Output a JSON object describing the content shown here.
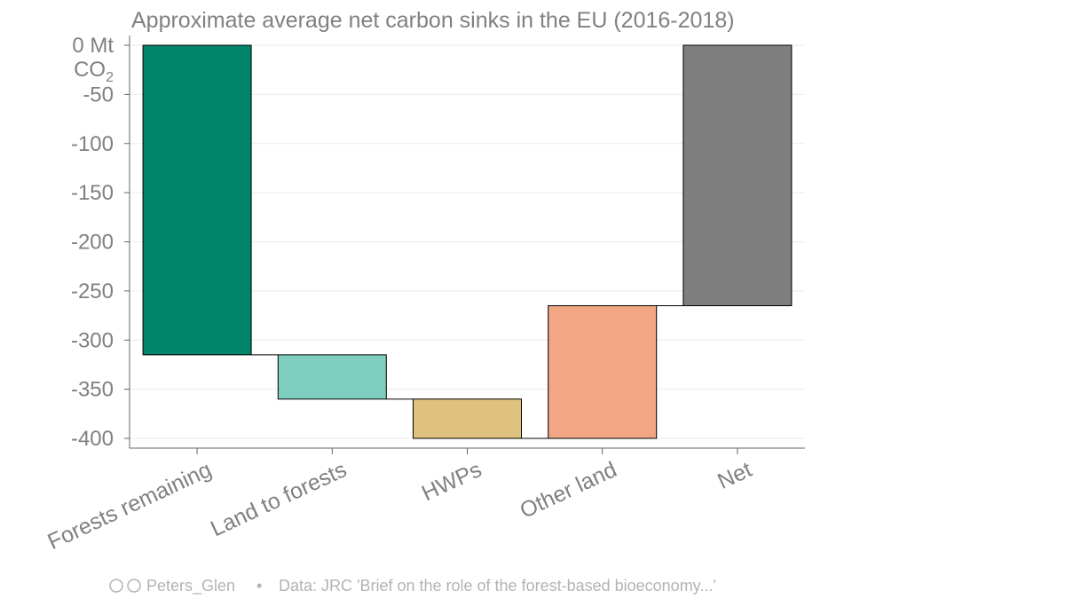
{
  "chart_data": {
    "type": "bar",
    "subtype": "waterfall",
    "title": "Approximate average net carbon sinks in the EU (2016-2018)",
    "ylabel_line1": "0 Mt",
    "ylabel_line2": "CO",
    "ylabel_sub": "2",
    "ylim": [
      -410,
      3
    ],
    "yticks": [
      -50,
      -100,
      -150,
      -200,
      -250,
      -300,
      -350,
      -400
    ],
    "grid": true,
    "categories": [
      "Forests remaining",
      "Land to forests",
      "HWPs",
      "Other land",
      "Net"
    ],
    "bars": [
      {
        "label": "Forests remaining",
        "start": 0,
        "end": -315,
        "color": "#00846a"
      },
      {
        "label": "Land to forests",
        "start": -315,
        "end": -360,
        "color": "#7ecfc0"
      },
      {
        "label": "HWPs",
        "start": -360,
        "end": -400,
        "color": "#dfc27d"
      },
      {
        "label": "Other land",
        "start": -400,
        "end": -265,
        "color": "#f2a683"
      },
      {
        "label": "Net",
        "start": 0,
        "end": -265,
        "color": "#7f7f7f"
      }
    ],
    "credit_author": "Peters_Glen",
    "credit_separator": "•",
    "credit_source": "Data: JRC 'Brief on the role of the forest-based bioeconomy...'"
  }
}
